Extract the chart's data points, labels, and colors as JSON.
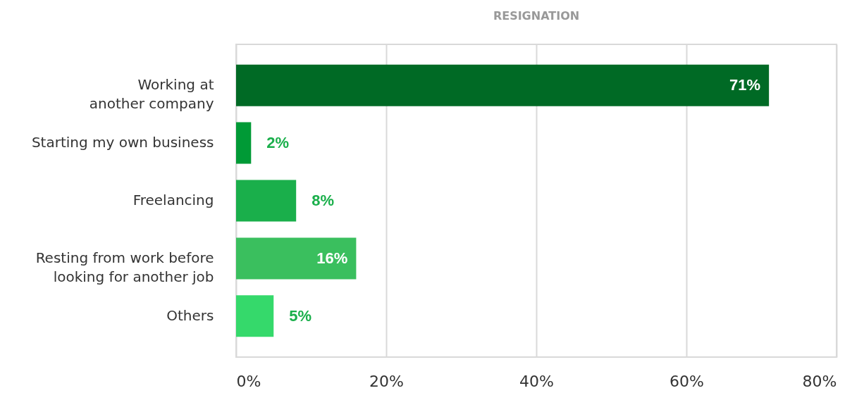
{
  "chart_data": {
    "type": "bar",
    "orientation": "horizontal",
    "title": "RESIGNATION",
    "categories": [
      "Working at\nanother company",
      "Starting my own business",
      "Freelancing",
      "Resting from work before\nlooking for another job",
      "Others"
    ],
    "values": [
      71,
      2,
      8,
      16,
      5
    ],
    "value_labels": [
      "71%",
      "2%",
      "8%",
      "16%",
      "5%"
    ],
    "colors": [
      "#006a25",
      "#009a36",
      "#1aaf4b",
      "#3abf5e",
      "#35d96b"
    ],
    "xlim": [
      0,
      80
    ],
    "xticks": [
      {
        "value": 0,
        "label": "0%"
      },
      {
        "value": 20,
        "label": "20%"
      },
      {
        "value": 40,
        "label": "40%"
      },
      {
        "value": 60,
        "label": "60%"
      },
      {
        "value": 80,
        "label": "80%"
      }
    ],
    "grid": "x"
  }
}
